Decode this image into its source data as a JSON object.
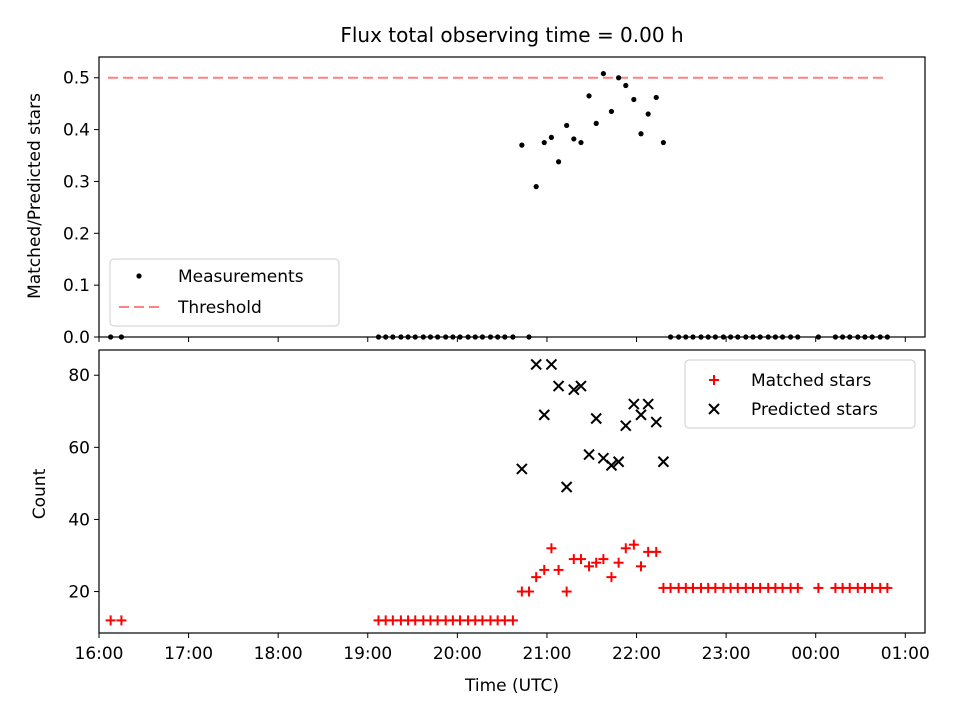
{
  "chart_data": [
    {
      "type": "scatter",
      "title": "Flux total observing time = 0.00 h",
      "ylabel": "Matched/Predicted stars",
      "xlabel": "",
      "xlim": [
        16.0,
        25.22
      ],
      "ylim": [
        0.0,
        0.54
      ],
      "yticks": [
        0.0,
        0.1,
        0.2,
        0.3,
        0.4,
        0.5
      ],
      "ytick_labels": [
        "0.0",
        "0.1",
        "0.2",
        "0.3",
        "0.4",
        "0.5"
      ],
      "legend_position": "lower-left",
      "threshold": {
        "name": "Threshold",
        "value": 0.5,
        "x_range": [
          16.1,
          24.8
        ],
        "color": "#ff8080"
      },
      "series": [
        {
          "name": "Measurements",
          "color": "#000000",
          "x": [
            16.13,
            16.25,
            19.12,
            19.2,
            19.28,
            19.37,
            19.45,
            19.53,
            19.62,
            19.7,
            19.78,
            19.87,
            19.95,
            20.03,
            20.12,
            20.2,
            20.28,
            20.37,
            20.45,
            20.53,
            20.62,
            20.72,
            20.8,
            20.88,
            20.97,
            21.05,
            21.13,
            21.22,
            21.3,
            21.38,
            21.47,
            21.55,
            21.63,
            21.72,
            21.8,
            21.88,
            21.97,
            22.05,
            22.13,
            22.22,
            22.3,
            22.38,
            22.47,
            22.55,
            22.63,
            22.72,
            22.8,
            22.88,
            22.97,
            23.05,
            23.13,
            23.22,
            23.3,
            23.38,
            23.47,
            23.55,
            23.63,
            23.72,
            23.8,
            24.03,
            24.22,
            24.3,
            24.38,
            24.47,
            24.55,
            24.63,
            24.72,
            24.8
          ],
          "y": [
            0.0,
            0.0,
            0.0,
            0.0,
            0.0,
            0.0,
            0.0,
            0.0,
            0.0,
            0.0,
            0.0,
            0.0,
            0.0,
            0.0,
            0.0,
            0.0,
            0.0,
            0.0,
            0.0,
            0.0,
            0.0,
            0.37,
            0.0,
            0.29,
            0.375,
            0.385,
            0.338,
            0.408,
            0.382,
            0.375,
            0.465,
            0.412,
            0.508,
            0.435,
            0.5,
            0.485,
            0.458,
            0.392,
            0.43,
            0.462,
            0.375,
            0.0,
            0.0,
            0.0,
            0.0,
            0.0,
            0.0,
            0.0,
            0.0,
            0.0,
            0.0,
            0.0,
            0.0,
            0.0,
            0.0,
            0.0,
            0.0,
            0.0,
            0.0,
            0.0,
            0.0,
            0.0,
            0.0,
            0.0,
            0.0,
            0.0,
            0.0,
            0.0
          ]
        }
      ]
    },
    {
      "type": "scatter",
      "title": "",
      "ylabel": "Count",
      "xlabel": "Time (UTC)",
      "xlim": [
        16.0,
        25.22
      ],
      "ylim": [
        8.5,
        87.0
      ],
      "yticks": [
        20,
        40,
        60,
        80
      ],
      "ytick_labels": [
        "20",
        "40",
        "60",
        "80"
      ],
      "xticks": [
        16,
        17,
        18,
        19,
        20,
        21,
        22,
        23,
        24,
        25
      ],
      "xtick_labels": [
        "16:00",
        "17:00",
        "18:00",
        "19:00",
        "20:00",
        "21:00",
        "22:00",
        "23:00",
        "00:00",
        "01:00"
      ],
      "legend_position": "top-right",
      "series": [
        {
          "name": "Matched stars",
          "color": "#ff0000",
          "marker": "+",
          "x": [
            16.13,
            16.25,
            19.12,
            19.2,
            19.28,
            19.37,
            19.45,
            19.53,
            19.62,
            19.7,
            19.78,
            19.87,
            19.95,
            20.03,
            20.12,
            20.2,
            20.28,
            20.37,
            20.45,
            20.53,
            20.62,
            20.72,
            20.8,
            20.88,
            20.97,
            21.05,
            21.13,
            21.22,
            21.3,
            21.38,
            21.47,
            21.55,
            21.63,
            21.72,
            21.8,
            21.88,
            21.97,
            22.05,
            22.13,
            22.22,
            22.3,
            22.38,
            22.47,
            22.55,
            22.63,
            22.72,
            22.8,
            22.88,
            22.97,
            23.05,
            23.13,
            23.22,
            23.3,
            23.38,
            23.47,
            23.55,
            23.63,
            23.72,
            23.8,
            24.03,
            24.22,
            24.3,
            24.38,
            24.47,
            24.55,
            24.63,
            24.72,
            24.8
          ],
          "y": [
            12,
            12,
            12,
            12,
            12,
            12,
            12,
            12,
            12,
            12,
            12,
            12,
            12,
            12,
            12,
            12,
            12,
            12,
            12,
            12,
            12,
            20,
            20,
            24,
            26,
            32,
            26,
            20,
            29,
            29,
            27,
            28,
            29,
            24,
            28,
            32,
            33,
            27,
            31,
            31,
            21,
            21,
            21,
            21,
            21,
            21,
            21,
            21,
            21,
            21,
            21,
            21,
            21,
            21,
            21,
            21,
            21,
            21,
            21,
            21,
            21,
            21,
            21,
            21,
            21,
            21,
            21,
            21
          ]
        },
        {
          "name": "Predicted stars",
          "color": "#000000",
          "marker": "x",
          "x": [
            20.72,
            20.88,
            20.97,
            21.05,
            21.13,
            21.22,
            21.3,
            21.38,
            21.47,
            21.55,
            21.63,
            21.72,
            21.8,
            21.88,
            21.97,
            22.05,
            22.13,
            22.22,
            22.3
          ],
          "y": [
            54,
            83,
            69,
            83,
            77,
            49,
            76,
            77,
            58,
            68,
            57,
            55,
            56,
            66,
            72,
            69,
            72,
            67,
            56
          ]
        }
      ]
    }
  ]
}
